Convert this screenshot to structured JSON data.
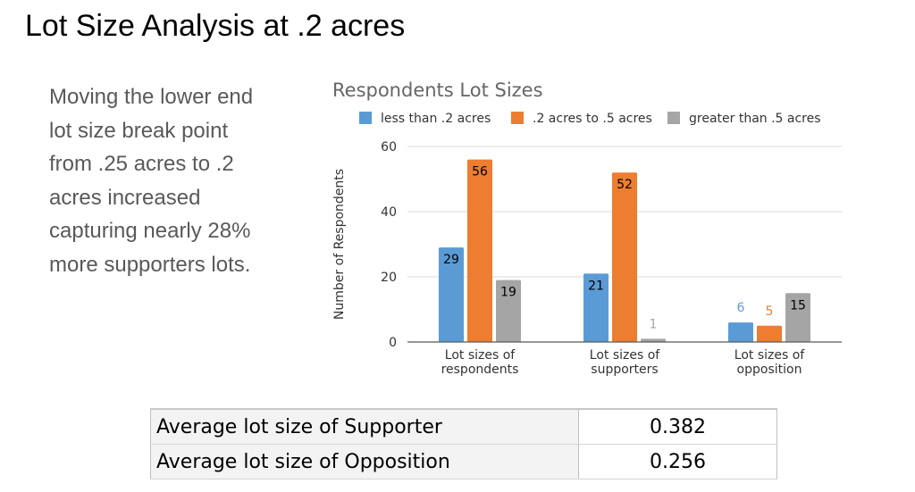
{
  "slide": {
    "title": "Lot Size Analysis at .2 acres",
    "body_text": "Moving the lower end lot size break point from .25 acres to .2 acres increased capturing nearly 28% more supporters lots."
  },
  "chart_data": {
    "type": "bar",
    "title": "Respondents Lot Sizes",
    "ylabel": "Number of Respondents",
    "xlabel": "",
    "ylim": [
      0,
      60
    ],
    "yticks": [
      0,
      20,
      40,
      60
    ],
    "grid": true,
    "legend_position": "top",
    "categories": [
      [
        "Lot sizes of",
        "respondents"
      ],
      [
        "Lot sizes of",
        "supporters"
      ],
      [
        "Lot sizes of",
        "opposition"
      ]
    ],
    "series": [
      {
        "name": "less than .2 acres",
        "color": "#5b9bd5",
        "values": [
          29,
          21,
          6
        ]
      },
      {
        "name": ".2 acres to .5 acres",
        "color": "#ed7d31",
        "values": [
          56,
          52,
          5
        ]
      },
      {
        "name": "greater than .5 acres",
        "color": "#a5a5a5",
        "values": [
          19,
          1,
          15
        ]
      }
    ]
  },
  "summary_table": {
    "rows": [
      {
        "label": "Average lot size of Supporter",
        "value": "0.382"
      },
      {
        "label": "Average lot size of Opposition",
        "value": "0.256"
      }
    ]
  }
}
